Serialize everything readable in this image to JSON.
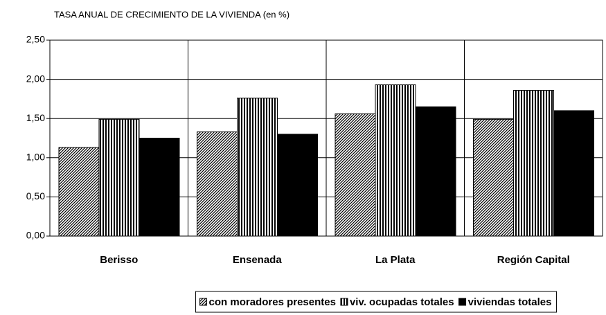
{
  "chart_data": {
    "type": "bar",
    "title": "TASA ANUAL DE CRECIMIENTO DE LA VIVIENDA (en %)",
    "categories": [
      "Berisso",
      "Ensenada",
      "La Plata",
      "Región Capital"
    ],
    "series": [
      {
        "name": "con moradores presentes",
        "color": "#000000",
        "pattern": "diagonal",
        "values": [
          1.13,
          1.33,
          1.56,
          1.49
        ]
      },
      {
        "name": "viv. ocupadas totales",
        "color": "#000000",
        "pattern": "vertical",
        "values": [
          1.49,
          1.76,
          1.93,
          1.86
        ]
      },
      {
        "name": "viviendas totales",
        "color": "#000000",
        "pattern": "solid",
        "values": [
          1.25,
          1.3,
          1.65,
          1.6
        ]
      }
    ],
    "ylim": [
      0,
      2.5
    ],
    "yticks": [
      {
        "value": 0,
        "label": "0,00"
      },
      {
        "value": 0.5,
        "label": "0,50"
      },
      {
        "value": 1,
        "label": "1,00"
      },
      {
        "value": 1.5,
        "label": "1,50"
      },
      {
        "value": 2,
        "label": "2,00"
      },
      {
        "value": 2.5,
        "label": "2,50"
      }
    ],
    "grid": true,
    "legend": "bottom"
  }
}
